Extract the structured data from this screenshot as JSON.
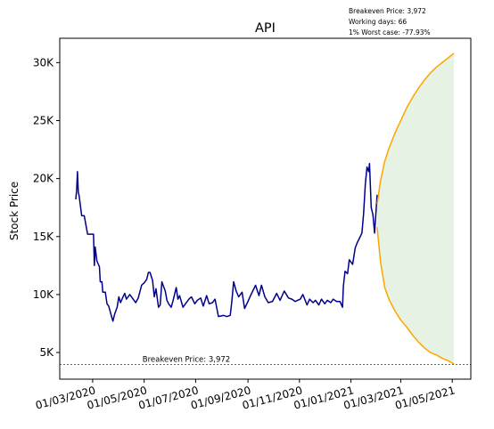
{
  "chart_data": {
    "type": "line",
    "title": "API",
    "xlabel": "",
    "ylabel": "Stock Price",
    "info_lines": [
      "Breakeven Price: 3,972",
      "Working days: 66",
      "1% Worst case: -77.93%"
    ],
    "breakeven": {
      "value": 3972,
      "label": "Breakeven Price: 3,972",
      "color": "#ff0000"
    },
    "x_ticks": [
      "01/03/2020",
      "01/05/2020",
      "01/07/2020",
      "01/09/2020",
      "01/11/2020",
      "01/01/2021",
      "01/03/2021",
      "01/05/2021"
    ],
    "x_tick_dates": [
      "2020-03-01",
      "2020-05-01",
      "2020-07-01",
      "2020-09-01",
      "2020-11-01",
      "2021-01-01",
      "2021-03-01",
      "2021-05-01"
    ],
    "y_ticks": [
      5000,
      10000,
      15000,
      20000,
      25000,
      30000
    ],
    "y_tick_labels": [
      "5K",
      "10K",
      "15K",
      "20K",
      "25K",
      "30K"
    ],
    "xlim": [
      "2020-01-22",
      "2021-05-23"
    ],
    "ylim": [
      2700,
      32100
    ],
    "grid": false,
    "series": [
      {
        "role": "historical",
        "color": "#00008b",
        "points": [
          [
            "2020-02-10",
            18200
          ],
          [
            "2020-02-11",
            19000
          ],
          [
            "2020-02-12",
            20600
          ],
          [
            "2020-02-13",
            18800
          ],
          [
            "2020-02-14",
            18500
          ],
          [
            "2020-02-17",
            16800
          ],
          [
            "2020-02-20",
            16800
          ],
          [
            "2020-02-24",
            15200
          ],
          [
            "2020-03-02",
            15200
          ],
          [
            "2020-03-03",
            12500
          ],
          [
            "2020-03-04",
            14100
          ],
          [
            "2020-03-06",
            12900
          ],
          [
            "2020-03-09",
            12400
          ],
          [
            "2020-03-10",
            11100
          ],
          [
            "2020-03-12",
            11100
          ],
          [
            "2020-03-13",
            10200
          ],
          [
            "2020-03-16",
            10200
          ],
          [
            "2020-03-18",
            9200
          ],
          [
            "2020-03-20",
            9000
          ],
          [
            "2020-03-23",
            8200
          ],
          [
            "2020-03-25",
            7700
          ],
          [
            "2020-03-27",
            8300
          ],
          [
            "2020-03-30",
            8900
          ],
          [
            "2020-04-01",
            9800
          ],
          [
            "2020-04-03",
            9300
          ],
          [
            "2020-04-06",
            9800
          ],
          [
            "2020-04-08",
            10100
          ],
          [
            "2020-04-10",
            9600
          ],
          [
            "2020-04-14",
            10000
          ],
          [
            "2020-04-17",
            9700
          ],
          [
            "2020-04-21",
            9300
          ],
          [
            "2020-04-24",
            9700
          ],
          [
            "2020-04-28",
            10800
          ],
          [
            "2020-05-01",
            11000
          ],
          [
            "2020-05-04",
            11300
          ],
          [
            "2020-05-06",
            11900
          ],
          [
            "2020-05-08",
            11900
          ],
          [
            "2020-05-11",
            11200
          ],
          [
            "2020-05-13",
            9800
          ],
          [
            "2020-05-15",
            10500
          ],
          [
            "2020-05-18",
            8900
          ],
          [
            "2020-05-20",
            9100
          ],
          [
            "2020-05-22",
            11100
          ],
          [
            "2020-05-26",
            10300
          ],
          [
            "2020-05-28",
            9500
          ],
          [
            "2020-05-30",
            9200
          ],
          [
            "2020-06-02",
            8900
          ],
          [
            "2020-06-04",
            9400
          ],
          [
            "2020-06-08",
            10600
          ],
          [
            "2020-06-10",
            9600
          ],
          [
            "2020-06-12",
            9900
          ],
          [
            "2020-06-16",
            8900
          ],
          [
            "2020-06-19",
            9200
          ],
          [
            "2020-06-23",
            9600
          ],
          [
            "2020-06-26",
            9800
          ],
          [
            "2020-06-30",
            9200
          ],
          [
            "2020-07-03",
            9500
          ],
          [
            "2020-07-07",
            9700
          ],
          [
            "2020-07-10",
            9000
          ],
          [
            "2020-07-14",
            9900
          ],
          [
            "2020-07-17",
            9200
          ],
          [
            "2020-07-21",
            9300
          ],
          [
            "2020-07-24",
            9600
          ],
          [
            "2020-07-28",
            8100
          ],
          [
            "2020-08-03",
            8200
          ],
          [
            "2020-08-07",
            8100
          ],
          [
            "2020-08-11",
            8200
          ],
          [
            "2020-08-13",
            9500
          ],
          [
            "2020-08-15",
            11100
          ],
          [
            "2020-08-18",
            10300
          ],
          [
            "2020-08-21",
            9800
          ],
          [
            "2020-08-25",
            10200
          ],
          [
            "2020-08-28",
            8800
          ],
          [
            "2020-09-01",
            9400
          ],
          [
            "2020-09-04",
            9900
          ],
          [
            "2020-09-08",
            10500
          ],
          [
            "2020-09-10",
            10800
          ],
          [
            "2020-09-14",
            9900
          ],
          [
            "2020-09-17",
            10800
          ],
          [
            "2020-09-21",
            9800
          ],
          [
            "2020-09-25",
            9300
          ],
          [
            "2020-09-30",
            9400
          ],
          [
            "2020-10-05",
            10100
          ],
          [
            "2020-10-09",
            9500
          ],
          [
            "2020-10-14",
            10300
          ],
          [
            "2020-10-19",
            9700
          ],
          [
            "2020-10-23",
            9600
          ],
          [
            "2020-10-27",
            9400
          ],
          [
            "2020-11-02",
            9600
          ],
          [
            "2020-11-05",
            10000
          ],
          [
            "2020-11-10",
            9100
          ],
          [
            "2020-11-13",
            9600
          ],
          [
            "2020-11-17",
            9300
          ],
          [
            "2020-11-20",
            9500
          ],
          [
            "2020-11-24",
            9100
          ],
          [
            "2020-11-27",
            9600
          ],
          [
            "2020-12-01",
            9200
          ],
          [
            "2020-12-04",
            9500
          ],
          [
            "2020-12-08",
            9300
          ],
          [
            "2020-12-11",
            9600
          ],
          [
            "2020-12-15",
            9400
          ],
          [
            "2020-12-19",
            9400
          ],
          [
            "2020-12-22",
            8900
          ],
          [
            "2020-12-23",
            10700
          ],
          [
            "2020-12-25",
            12000
          ],
          [
            "2020-12-28",
            11800
          ],
          [
            "2020-12-30",
            13000
          ],
          [
            "2021-01-03",
            12600
          ],
          [
            "2021-01-06",
            14000
          ],
          [
            "2021-01-08",
            14400
          ],
          [
            "2021-01-12",
            15000
          ],
          [
            "2021-01-14",
            15300
          ],
          [
            "2021-01-16",
            17000
          ],
          [
            "2021-01-18",
            19500
          ],
          [
            "2021-01-20",
            21000
          ],
          [
            "2021-01-22",
            20600
          ],
          [
            "2021-01-23",
            21300
          ],
          [
            "2021-01-25",
            17500
          ],
          [
            "2021-01-27",
            16900
          ],
          [
            "2021-01-29",
            15300
          ],
          [
            "2021-02-01",
            18600
          ]
        ]
      },
      {
        "role": "projection_upper",
        "color": "#ffa500",
        "points": [
          [
            "2021-02-01",
            17800
          ],
          [
            "2021-02-05",
            19800
          ],
          [
            "2021-02-10",
            21500
          ],
          [
            "2021-02-15",
            22600
          ],
          [
            "2021-02-22",
            23900
          ],
          [
            "2021-03-01",
            25000
          ],
          [
            "2021-03-08",
            26100
          ],
          [
            "2021-03-15",
            27000
          ],
          [
            "2021-03-22",
            27800
          ],
          [
            "2021-03-29",
            28500
          ],
          [
            "2021-04-05",
            29100
          ],
          [
            "2021-04-12",
            29600
          ],
          [
            "2021-04-19",
            30000
          ],
          [
            "2021-04-26",
            30400
          ],
          [
            "2021-05-03",
            30800
          ]
        ]
      },
      {
        "role": "projection_lower",
        "color": "#ffa500",
        "points": [
          [
            "2021-02-01",
            15800
          ],
          [
            "2021-02-05",
            12800
          ],
          [
            "2021-02-10",
            10600
          ],
          [
            "2021-02-15",
            9600
          ],
          [
            "2021-02-22",
            8600
          ],
          [
            "2021-03-01",
            7800
          ],
          [
            "2021-03-08",
            7200
          ],
          [
            "2021-03-15",
            6500
          ],
          [
            "2021-03-22",
            5900
          ],
          [
            "2021-03-29",
            5400
          ],
          [
            "2021-04-05",
            5000
          ],
          [
            "2021-04-12",
            4800
          ],
          [
            "2021-04-19",
            4500
          ],
          [
            "2021-04-26",
            4300
          ],
          [
            "2021-05-03",
            4000
          ]
        ]
      }
    ],
    "band_fill_color": "#e6f2e4"
  }
}
